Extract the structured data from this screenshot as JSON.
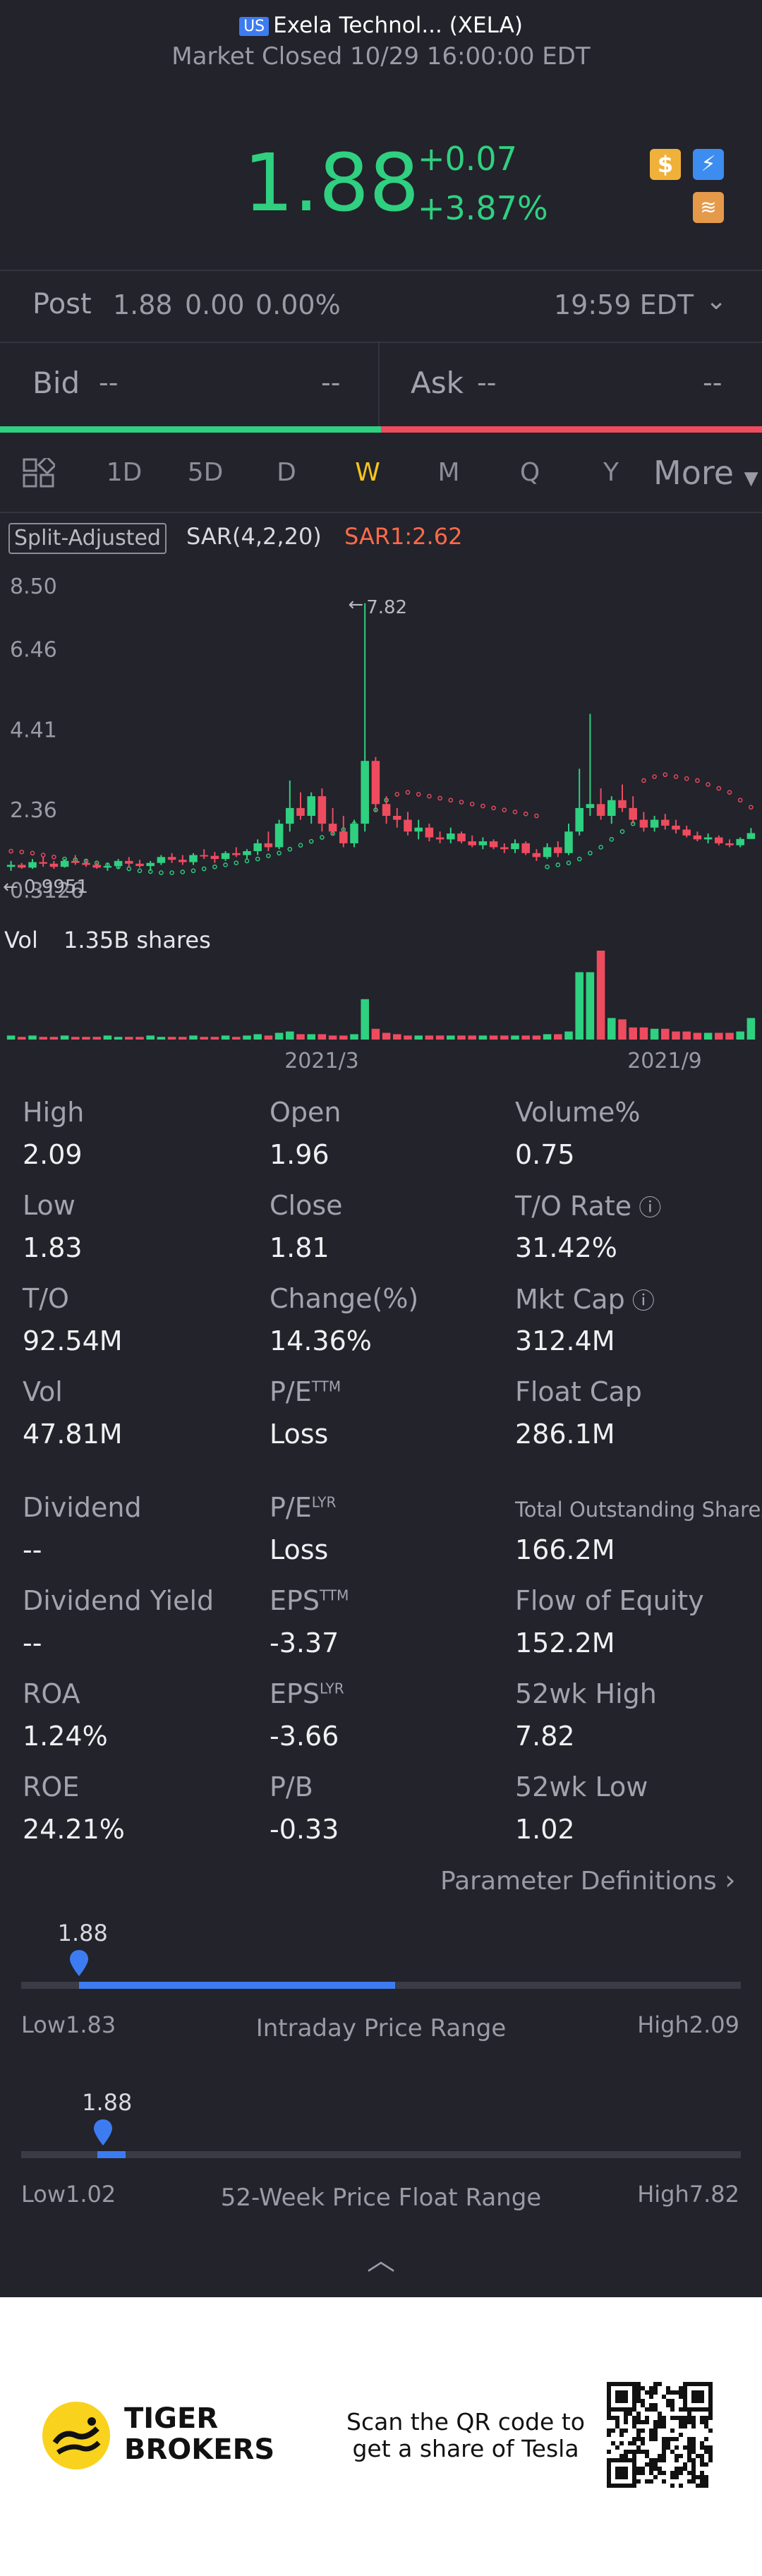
{
  "header": {
    "market_badge": "US",
    "title": "Exela Technol... (XELA)",
    "status": "Market Closed 10/29 16:00:00 EDT"
  },
  "quote": {
    "price": "1.88",
    "change": "+0.07",
    "change_pct": "+3.87%"
  },
  "post": {
    "label": "Post",
    "price": "1.88",
    "change": "0.00",
    "change_pct": "0.00%",
    "time": "19:59 EDT"
  },
  "bidask": {
    "bid_label": "Bid",
    "bid_val": "--",
    "bid_size": "--",
    "ask_label": "Ask",
    "ask_val": "--",
    "ask_size": "--",
    "bid_share": 0.5
  },
  "tabs": [
    "1D",
    "5D",
    "D",
    "W",
    "M",
    "Q",
    "Y"
  ],
  "active_tab": "W",
  "more_label": "More",
  "chart": {
    "adjust_label": "Split-Adjusted",
    "sar_label": "SAR(4,2,20)",
    "sar_value": "SAR1:2.62",
    "y_ticks": [
      "8.50",
      "6.46",
      "4.41",
      "2.36",
      "0.3126"
    ],
    "max_label": "7.82",
    "min_label": "0.9951",
    "vol_label": "Vol",
    "vol_value": "1.35B shares",
    "x_labels": [
      "2021/3",
      "2021/9"
    ],
    "colors": {
      "up": "#2fd080",
      "down": "#ee4b5f"
    }
  },
  "chart_data": {
    "type": "candlestick",
    "ylim": [
      0.3126,
      8.5
    ],
    "y_ticks": [
      8.5,
      6.46,
      4.41,
      2.36,
      0.3126
    ],
    "x_ticks": [
      "2021/3",
      "2021/9"
    ],
    "indicator": "SAR(4,2,20)",
    "candles": [
      {
        "o": 1.1,
        "h": 1.25,
        "l": 1.0,
        "c": 1.15
      },
      {
        "o": 1.15,
        "h": 1.2,
        "l": 1.05,
        "c": 1.08
      },
      {
        "o": 1.08,
        "h": 1.3,
        "l": 1.05,
        "c": 1.22
      },
      {
        "o": 1.22,
        "h": 1.35,
        "l": 1.1,
        "c": 1.18
      },
      {
        "o": 1.18,
        "h": 1.25,
        "l": 1.05,
        "c": 1.1
      },
      {
        "o": 1.1,
        "h": 1.3,
        "l": 1.08,
        "c": 1.25
      },
      {
        "o": 1.25,
        "h": 1.4,
        "l": 1.15,
        "c": 1.2
      },
      {
        "o": 1.2,
        "h": 1.28,
        "l": 1.1,
        "c": 1.15
      },
      {
        "o": 1.15,
        "h": 1.22,
        "l": 1.05,
        "c": 1.08
      },
      {
        "o": 1.08,
        "h": 1.2,
        "l": 1.0,
        "c": 1.12
      },
      {
        "o": 1.12,
        "h": 1.3,
        "l": 1.05,
        "c": 1.25
      },
      {
        "o": 1.25,
        "h": 1.35,
        "l": 1.1,
        "c": 1.18
      },
      {
        "o": 1.18,
        "h": 1.28,
        "l": 1.08,
        "c": 1.12
      },
      {
        "o": 1.12,
        "h": 1.25,
        "l": 1.0,
        "c": 1.2
      },
      {
        "o": 1.2,
        "h": 1.4,
        "l": 1.15,
        "c": 1.35
      },
      {
        "o": 1.35,
        "h": 1.45,
        "l": 1.2,
        "c": 1.28
      },
      {
        "o": 1.28,
        "h": 1.4,
        "l": 1.15,
        "c": 1.22
      },
      {
        "o": 1.22,
        "h": 1.45,
        "l": 1.15,
        "c": 1.4
      },
      {
        "o": 1.4,
        "h": 1.55,
        "l": 1.3,
        "c": 1.38
      },
      {
        "o": 1.38,
        "h": 1.48,
        "l": 1.2,
        "c": 1.3
      },
      {
        "o": 1.3,
        "h": 1.5,
        "l": 1.25,
        "c": 1.45
      },
      {
        "o": 1.45,
        "h": 1.6,
        "l": 1.35,
        "c": 1.4
      },
      {
        "o": 1.4,
        "h": 1.55,
        "l": 1.3,
        "c": 1.5
      },
      {
        "o": 1.5,
        "h": 1.8,
        "l": 1.4,
        "c": 1.7
      },
      {
        "o": 1.7,
        "h": 2.0,
        "l": 1.5,
        "c": 1.6
      },
      {
        "o": 1.6,
        "h": 2.3,
        "l": 1.55,
        "c": 2.2
      },
      {
        "o": 2.2,
        "h": 3.3,
        "l": 2.0,
        "c": 2.6
      },
      {
        "o": 2.6,
        "h": 3.0,
        "l": 2.3,
        "c": 2.4
      },
      {
        "o": 2.4,
        "h": 3.0,
        "l": 2.2,
        "c": 2.9
      },
      {
        "o": 2.9,
        "h": 3.1,
        "l": 2.0,
        "c": 2.2
      },
      {
        "o": 2.2,
        "h": 2.6,
        "l": 1.9,
        "c": 2.0
      },
      {
        "o": 2.0,
        "h": 2.4,
        "l": 1.6,
        "c": 1.7
      },
      {
        "o": 1.7,
        "h": 2.3,
        "l": 1.6,
        "c": 2.2
      },
      {
        "o": 2.2,
        "h": 7.82,
        "l": 2.0,
        "c": 3.8
      },
      {
        "o": 3.8,
        "h": 3.9,
        "l": 2.5,
        "c": 2.7
      },
      {
        "o": 2.7,
        "h": 2.9,
        "l": 2.2,
        "c": 2.4
      },
      {
        "o": 2.4,
        "h": 2.6,
        "l": 2.1,
        "c": 2.3
      },
      {
        "o": 2.3,
        "h": 2.5,
        "l": 1.9,
        "c": 2.0
      },
      {
        "o": 2.0,
        "h": 2.3,
        "l": 1.8,
        "c": 2.1
      },
      {
        "o": 2.1,
        "h": 2.2,
        "l": 1.75,
        "c": 1.85
      },
      {
        "o": 1.85,
        "h": 2.0,
        "l": 1.7,
        "c": 1.8
      },
      {
        "o": 1.8,
        "h": 2.1,
        "l": 1.7,
        "c": 1.95
      },
      {
        "o": 1.95,
        "h": 2.0,
        "l": 1.7,
        "c": 1.75
      },
      {
        "o": 1.75,
        "h": 1.9,
        "l": 1.6,
        "c": 1.65
      },
      {
        "o": 1.65,
        "h": 1.85,
        "l": 1.55,
        "c": 1.75
      },
      {
        "o": 1.75,
        "h": 1.8,
        "l": 1.55,
        "c": 1.6
      },
      {
        "o": 1.6,
        "h": 1.7,
        "l": 1.45,
        "c": 1.55
      },
      {
        "o": 1.55,
        "h": 1.8,
        "l": 1.45,
        "c": 1.7
      },
      {
        "o": 1.7,
        "h": 1.75,
        "l": 1.4,
        "c": 1.45
      },
      {
        "o": 1.45,
        "h": 1.55,
        "l": 1.25,
        "c": 1.35
      },
      {
        "o": 1.35,
        "h": 1.7,
        "l": 1.3,
        "c": 1.6
      },
      {
        "o": 1.6,
        "h": 1.75,
        "l": 1.35,
        "c": 1.45
      },
      {
        "o": 1.45,
        "h": 2.2,
        "l": 1.4,
        "c": 2.0
      },
      {
        "o": 2.0,
        "h": 3.6,
        "l": 1.9,
        "c": 2.6
      },
      {
        "o": 2.6,
        "h": 5.0,
        "l": 2.4,
        "c": 2.7
      },
      {
        "o": 2.7,
        "h": 3.1,
        "l": 2.3,
        "c": 2.4
      },
      {
        "o": 2.4,
        "h": 2.9,
        "l": 2.2,
        "c": 2.8
      },
      {
        "o": 2.8,
        "h": 3.2,
        "l": 2.5,
        "c": 2.6
      },
      {
        "o": 2.6,
        "h": 2.9,
        "l": 2.2,
        "c": 2.3
      },
      {
        "o": 2.3,
        "h": 2.5,
        "l": 2.0,
        "c": 2.1
      },
      {
        "o": 2.1,
        "h": 2.4,
        "l": 2.0,
        "c": 2.3
      },
      {
        "o": 2.3,
        "h": 2.45,
        "l": 2.05,
        "c": 2.15
      },
      {
        "o": 2.15,
        "h": 2.3,
        "l": 1.95,
        "c": 2.05
      },
      {
        "o": 2.05,
        "h": 2.15,
        "l": 1.85,
        "c": 1.9
      },
      {
        "o": 1.9,
        "h": 2.0,
        "l": 1.75,
        "c": 1.8
      },
      {
        "o": 1.8,
        "h": 1.95,
        "l": 1.7,
        "c": 1.85
      },
      {
        "o": 1.85,
        "h": 1.9,
        "l": 1.65,
        "c": 1.7
      },
      {
        "o": 1.7,
        "h": 1.8,
        "l": 1.6,
        "c": 1.65
      },
      {
        "o": 1.65,
        "h": 1.85,
        "l": 1.6,
        "c": 1.81
      },
      {
        "o": 1.81,
        "h": 2.09,
        "l": 1.83,
        "c": 1.96
      }
    ],
    "sar": [
      1.5,
      1.48,
      1.45,
      1.4,
      1.35,
      1.3,
      1.28,
      1.25,
      1.2,
      1.15,
      1.1,
      1.05,
      1.0,
      0.98,
      0.95,
      0.95,
      0.97,
      1.0,
      1.05,
      1.1,
      1.15,
      1.2,
      1.25,
      1.3,
      1.38,
      1.45,
      1.55,
      1.65,
      1.75,
      1.85,
      1.95,
      2.05,
      2.2,
      2.35,
      2.55,
      2.8,
      2.95,
      3.0,
      2.95,
      2.9,
      2.85,
      2.8,
      2.75,
      2.7,
      2.65,
      2.6,
      2.55,
      2.5,
      2.45,
      2.4,
      1.1,
      1.15,
      1.2,
      1.3,
      1.45,
      1.6,
      1.8,
      2.0,
      2.2,
      3.3,
      3.4,
      3.45,
      3.4,
      3.35,
      3.3,
      3.2,
      3.1,
      3.0,
      2.8,
      2.62
    ],
    "volume": [
      0.3,
      0.2,
      0.3,
      0.2,
      0.2,
      0.3,
      0.2,
      0.2,
      0.2,
      0.3,
      0.2,
      0.2,
      0.2,
      0.3,
      0.2,
      0.2,
      0.2,
      0.3,
      0.2,
      0.2,
      0.3,
      0.2,
      0.3,
      0.4,
      0.3,
      0.5,
      0.6,
      0.4,
      0.4,
      0.4,
      0.3,
      0.3,
      0.4,
      3.0,
      0.8,
      0.5,
      0.4,
      0.3,
      0.3,
      0.3,
      0.3,
      0.3,
      0.3,
      0.3,
      0.3,
      0.3,
      0.3,
      0.3,
      0.3,
      0.3,
      0.4,
      0.4,
      0.6,
      5.0,
      5.0,
      6.6,
      1.6,
      1.5,
      0.9,
      0.9,
      0.8,
      0.8,
      0.6,
      0.6,
      0.5,
      0.5,
      0.5,
      0.5,
      0.6,
      1.6
    ]
  },
  "stats": [
    {
      "label": "High",
      "value": "2.09",
      "sup": "",
      "info": false
    },
    {
      "label": "Open",
      "value": "1.96",
      "sup": "",
      "info": false
    },
    {
      "label": "Volume%",
      "value": "0.75",
      "sup": "",
      "info": false
    },
    {
      "label": "Low",
      "value": "1.83",
      "sup": "",
      "info": false
    },
    {
      "label": "Close",
      "value": "1.81",
      "sup": "",
      "info": false
    },
    {
      "label": "T/O Rate",
      "value": "31.42%",
      "sup": "",
      "info": true
    },
    {
      "label": "T/O",
      "value": "92.54M",
      "sup": "",
      "info": false
    },
    {
      "label": "Change(%)",
      "value": "14.36%",
      "sup": "",
      "info": false
    },
    {
      "label": "Mkt Cap",
      "value": "312.4M",
      "sup": "",
      "info": true
    },
    {
      "label": "Vol",
      "value": "47.81M",
      "sup": "",
      "info": false
    },
    {
      "label": "P/E",
      "value": "Loss",
      "sup": "TTM",
      "info": false
    },
    {
      "label": "Float Cap",
      "value": "286.1M",
      "sup": "",
      "info": false
    }
  ],
  "stats2": [
    {
      "label": "Dividend",
      "value": "--",
      "sup": ""
    },
    {
      "label": "P/E",
      "value": "Loss",
      "sup": "LYR"
    },
    {
      "label": "Total Outstanding Shares",
      "value": "166.2M",
      "sup": "",
      "small": true
    },
    {
      "label": "Dividend Yield",
      "value": "--",
      "sup": ""
    },
    {
      "label": "EPS",
      "value": "-3.37",
      "sup": "TTM"
    },
    {
      "label": "Flow of Equity",
      "value": "152.2M",
      "sup": ""
    },
    {
      "label": "ROA",
      "value": "1.24%",
      "sup": ""
    },
    {
      "label": "EPS",
      "value": "-3.66",
      "sup": "LYR"
    },
    {
      "label": "52wk High",
      "value": "7.82",
      "sup": ""
    },
    {
      "label": "ROE",
      "value": "24.21%",
      "sup": ""
    },
    {
      "label": "P/B",
      "value": "-0.33",
      "sup": ""
    },
    {
      "label": "52wk Low",
      "value": "1.02",
      "sup": ""
    }
  ],
  "param_defs": "Parameter Definitions",
  "intraday": {
    "current": "1.88",
    "low_text": "Low1.83",
    "high_text": "High2.09",
    "title": "Intraday Price Range",
    "low": 1.83,
    "high": 2.09,
    "price": 1.88,
    "fill_end": 0.52
  },
  "week52": {
    "current": "1.88",
    "low_text": "Low1.02",
    "high_text": "High7.82",
    "title": "52-Week Price Float Range",
    "low": 1.02,
    "high": 7.82,
    "price": 1.88
  },
  "footer": {
    "brand_line1": "TIGER",
    "brand_line2": "BROKERS",
    "promo_line1": "Scan the QR code to",
    "promo_line2": "get a share of Tesla"
  }
}
